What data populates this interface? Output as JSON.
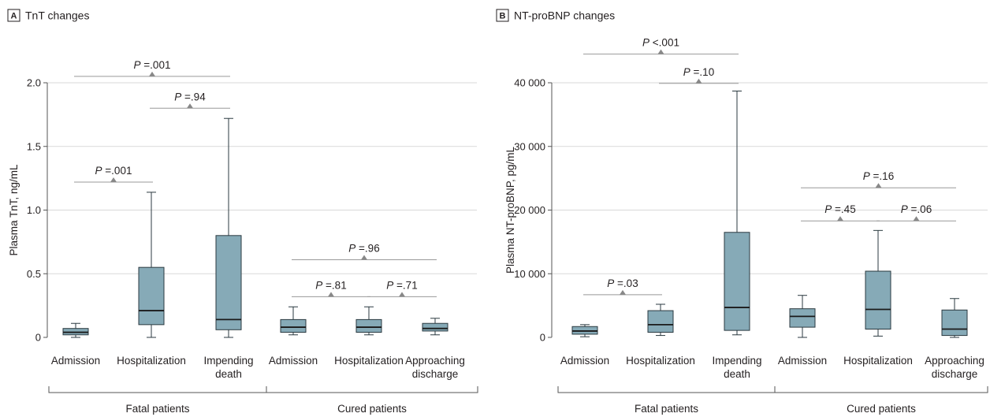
{
  "colors": {
    "box": "#86aab7",
    "box_stroke": "#2b3a40",
    "grid": "#d9d9d9",
    "axis": "#555555",
    "bracket": "#999999",
    "marker": "#888888"
  },
  "chart_data": [
    {
      "type": "box",
      "panel_letter": "A",
      "title": "TnT changes",
      "ylabel": "Plasma TnT, ng/mL",
      "ylim": [
        0,
        2.0
      ],
      "yticks": [
        0,
        0.5,
        1.0,
        1.5,
        2.0
      ],
      "ytick_labels": [
        "0",
        "0.5",
        "1.0",
        "1.5",
        "2.0"
      ],
      "grid": true,
      "categories": [
        [
          "Admission"
        ],
        [
          "Hospitalization"
        ],
        [
          "Impending",
          "death"
        ],
        [
          "Admission"
        ],
        [
          "Hospitalization"
        ],
        [
          "Approaching",
          "discharge"
        ]
      ],
      "groups": [
        {
          "label": "Fatal patients",
          "from": 0,
          "to": 2
        },
        {
          "label": "Cured patients",
          "from": 3,
          "to": 5
        }
      ],
      "boxes": [
        {
          "min": 0.0,
          "q1": 0.02,
          "median": 0.04,
          "q3": 0.07,
          "max": 0.11
        },
        {
          "min": 0.0,
          "q1": 0.1,
          "median": 0.21,
          "q3": 0.55,
          "max": 1.14
        },
        {
          "min": 0.0,
          "q1": 0.06,
          "median": 0.14,
          "q3": 0.8,
          "max": 1.72
        },
        {
          "min": 0.02,
          "q1": 0.04,
          "median": 0.08,
          "q3": 0.14,
          "max": 0.24
        },
        {
          "min": 0.02,
          "q1": 0.04,
          "median": 0.08,
          "q3": 0.14,
          "max": 0.24
        },
        {
          "min": 0.02,
          "q1": 0.05,
          "median": 0.07,
          "q3": 0.11,
          "max": 0.15
        }
      ],
      "comparisons": [
        {
          "from": 0,
          "to": 2,
          "y": 2.05,
          "label": ".001"
        },
        {
          "from": 1,
          "to": 2,
          "y": 1.8,
          "label": ".94"
        },
        {
          "from": 0,
          "to": 1,
          "y": 1.22,
          "label": ".001"
        },
        {
          "from": 3,
          "to": 5,
          "y": 0.61,
          "label": ".96"
        },
        {
          "from": 3,
          "to": 4,
          "y": 0.32,
          "label": ".81"
        },
        {
          "from": 4,
          "to": 5,
          "y": 0.32,
          "label": ".71"
        }
      ]
    },
    {
      "type": "box",
      "panel_letter": "B",
      "title": "NT-proBNP changes",
      "ylabel": "Plasma NT-proBNP, pg/mL",
      "ylim": [
        0,
        40000
      ],
      "yticks": [
        0,
        10000,
        20000,
        30000,
        40000
      ],
      "ytick_labels": [
        "0",
        "10 000",
        "20 000",
        "30 000",
        "40 000"
      ],
      "grid": true,
      "categories": [
        [
          "Admission"
        ],
        [
          "Hospitalization"
        ],
        [
          "Impending",
          "death"
        ],
        [
          "Admission"
        ],
        [
          "Hospitalization"
        ],
        [
          "Approaching",
          "discharge"
        ]
      ],
      "groups": [
        {
          "label": "Fatal patients",
          "from": 0,
          "to": 2
        },
        {
          "label": "Cured patients",
          "from": 3,
          "to": 5
        }
      ],
      "boxes": [
        {
          "min": 100,
          "q1": 500,
          "median": 1000,
          "q3": 1700,
          "max": 2000
        },
        {
          "min": 300,
          "q1": 800,
          "median": 2000,
          "q3": 4200,
          "max": 5200
        },
        {
          "min": 400,
          "q1": 1100,
          "median": 4700,
          "q3": 16500,
          "max": 38700
        },
        {
          "min": 0,
          "q1": 1600,
          "median": 3300,
          "q3": 4500,
          "max": 6600
        },
        {
          "min": 200,
          "q1": 1300,
          "median": 4400,
          "q3": 10400,
          "max": 16800
        },
        {
          "min": 0,
          "q1": 300,
          "median": 1300,
          "q3": 4300,
          "max": 6100
        }
      ],
      "comparisons": [
        {
          "from": 0,
          "to": 2,
          "y": 44500,
          "comparator": "<",
          "label": ".001"
        },
        {
          "from": 1,
          "to": 2,
          "y": 39900,
          "label": ".10"
        },
        {
          "from": 0,
          "to": 1,
          "y": 6700,
          "label": ".03"
        },
        {
          "from": 3,
          "to": 5,
          "y": 23500,
          "label": ".16"
        },
        {
          "from": 3,
          "to": 4,
          "y": 18300,
          "label": ".45"
        },
        {
          "from": 4,
          "to": 5,
          "y": 18300,
          "label": ".06"
        }
      ]
    }
  ]
}
